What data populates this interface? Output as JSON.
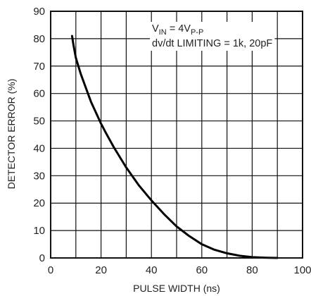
{
  "chart_data": {
    "type": "line",
    "xlabel": "PULSE WIDTH (ns)",
    "ylabel": "DETECTOR ERROR (%)",
    "xlim": [
      0,
      100
    ],
    "ylim": [
      0,
      90
    ],
    "x_ticks": [
      0,
      20,
      40,
      60,
      80,
      100
    ],
    "y_ticks": [
      0,
      10,
      20,
      30,
      40,
      50,
      60,
      70,
      80,
      90
    ],
    "grid": true,
    "annotation": {
      "line1_main": "V",
      "line1_sub1": "IN",
      "line1_mid": " = 4V",
      "line1_sub2": "P-P",
      "line2": "dv/dt LIMITING = 1k, 20pF"
    },
    "series": [
      {
        "x": [
          8.5,
          9,
          9.5,
          10,
          11,
          12,
          14,
          16,
          18,
          20,
          22,
          25,
          28,
          30,
          35,
          40,
          45,
          50,
          55,
          60,
          65,
          70,
          75,
          80,
          85,
          90
        ],
        "y": [
          81,
          78,
          75.5,
          73,
          70,
          67,
          62,
          57,
          53,
          49,
          45.5,
          40.5,
          36,
          33,
          26.5,
          21,
          16,
          11.5,
          8,
          5,
          3,
          1.7,
          0.8,
          0.3,
          0.1,
          0
        ]
      }
    ]
  }
}
